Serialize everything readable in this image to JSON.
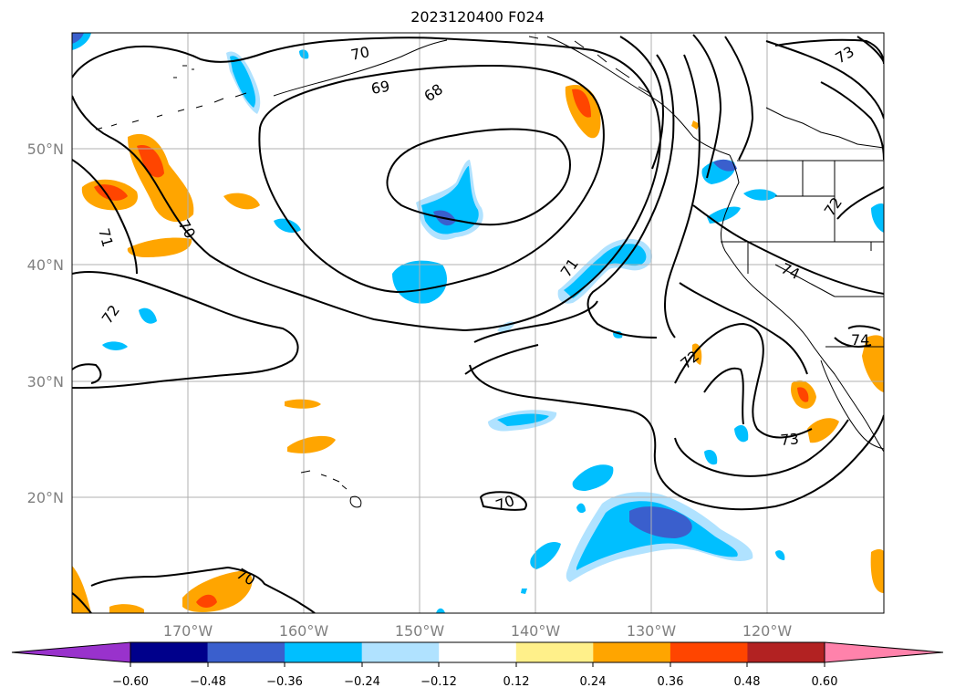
{
  "title": "2023120400 F024",
  "axes": {
    "lat_labels": [
      "50°N",
      "40°N",
      "30°N",
      "20°N"
    ],
    "lon_labels": [
      "170°W",
      "160°W",
      "150°W",
      "140°W",
      "130°W",
      "120°W"
    ]
  },
  "contour_labels": [
    "70",
    "69",
    "68",
    "71",
    "70",
    "72",
    "71",
    "74",
    "72",
    "73",
    "74",
    "70",
    "70",
    "73",
    "72"
  ],
  "colorbar": {
    "ticks": [
      "−0.60",
      "−0.48",
      "−0.36",
      "−0.24",
      "−0.12",
      "0.12",
      "0.24",
      "0.36",
      "0.48",
      "0.60"
    ],
    "colors": [
      "#9932cc",
      "#00008b",
      "#3a5fcd",
      "#00bfff",
      "#b0e2ff",
      "#ffffff",
      "#fff08a",
      "#ffa500",
      "#ff4500",
      "#b22222",
      "#ff82ab"
    ]
  }
}
